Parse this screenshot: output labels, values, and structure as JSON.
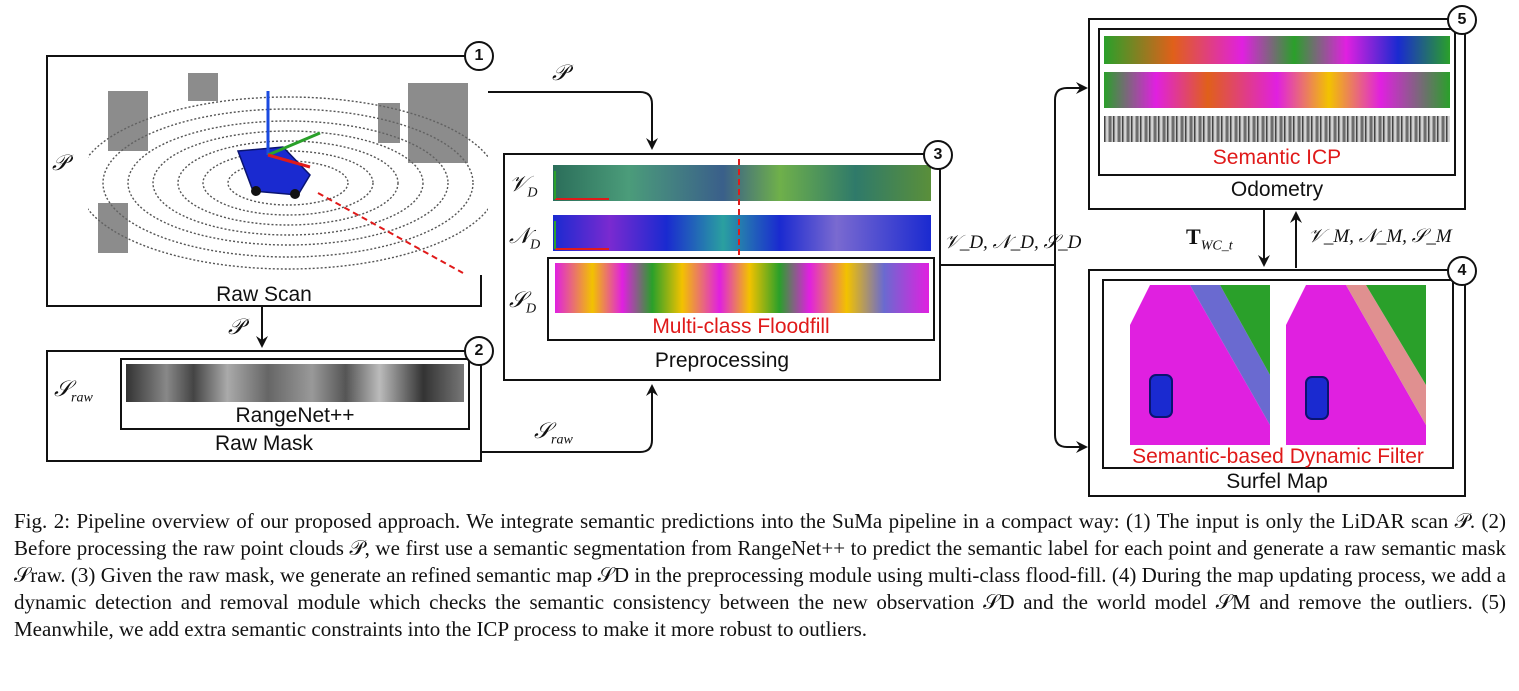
{
  "figure": {
    "raw_scan": {
      "title": "Raw Scan",
      "input_symbol": "𝒫",
      "badge": "1"
    },
    "raw_mask": {
      "title": "Raw Mask",
      "inner_label": "RangeNet++",
      "symbol": "𝒮",
      "symbol_sub": "raw",
      "badge": "2"
    },
    "preprocessing": {
      "title": "Preprocessing",
      "badge": "3",
      "inner_label": "Multi-class Floodfill",
      "rows": [
        {
          "symbol": "𝒱",
          "sub": "D"
        },
        {
          "symbol": "𝒩",
          "sub": "D"
        },
        {
          "symbol": "𝒮",
          "sub": "D"
        }
      ]
    },
    "odometry": {
      "title": "Odometry",
      "inner_label": "Semantic ICP",
      "badge": "5"
    },
    "surfel_map": {
      "title": "Surfel Map",
      "inner_label": "Semantic-based Dynamic Filter",
      "badge": "4"
    },
    "edge_labels": {
      "p_top": "𝒫",
      "p_down": "𝒫",
      "s_raw": "𝒮",
      "s_raw_sub": "raw",
      "vns_d": "𝒱_D, 𝒩_D, 𝒮_D",
      "t_wc": "T",
      "t_wc_sub": "WC_t",
      "vns_m": "𝒱_M, 𝒩_M, 𝒮_M"
    },
    "colors": {
      "red_label": "#e01a1a",
      "line": "#111111",
      "magenta": "#e020e0",
      "blue": "#1a2ad0",
      "green": "#2aa02a",
      "yellow": "#f2c200"
    }
  },
  "caption": "Fig. 2: Pipeline overview of our proposed approach. We integrate semantic predictions into the SuMa pipeline in a compact way: (1) The input is only the LiDAR scan 𝒫. (2) Before processing the raw point clouds 𝒫, we first use a semantic segmentation from RangeNet++ to predict the semantic label for each point and generate a raw semantic mask 𝒮raw. (3) Given the raw mask, we generate an refined semantic map 𝒮D in the preprocessing module using multi-class flood-fill. (4) During the map updating process, we add a dynamic detection and removal module which checks the semantic consistency between the new observation 𝒮D and the world model 𝒮M and remove the outliers. (5) Meanwhile, we add extra semantic constraints into the ICP process to make it more robust to outliers."
}
